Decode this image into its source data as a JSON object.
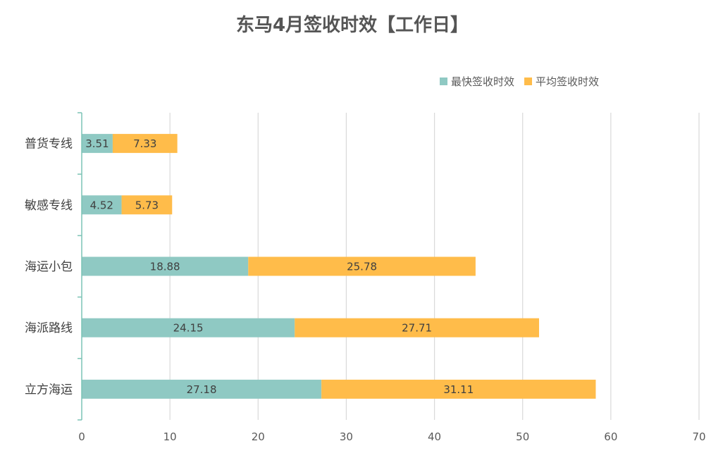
{
  "chart_data": {
    "type": "bar",
    "orientation": "horizontal",
    "stacked": true,
    "title": "东马4月签收时效【工作日】",
    "xlabel": "",
    "ylabel": "",
    "categories": [
      "普货专线",
      "敏感专线",
      "海运小包",
      "海派路线",
      "立方海运"
    ],
    "series": [
      {
        "name": "最快签收时效",
        "color": "#8FC9C3",
        "values": [
          3.51,
          4.52,
          18.88,
          24.15,
          27.18
        ]
      },
      {
        "name": "平均签收时效",
        "color": "#FFBC4A",
        "values": [
          7.33,
          5.73,
          25.78,
          27.71,
          31.11
        ]
      }
    ],
    "xlim": [
      0,
      70
    ],
    "xticks": [
      0,
      10,
      20,
      30,
      40,
      50,
      60,
      70
    ],
    "grid": "vertical",
    "legend_position": "top-right",
    "data_labels": true,
    "axis_color": "#7CC3B5",
    "grid_color": "#D9D9D9"
  }
}
